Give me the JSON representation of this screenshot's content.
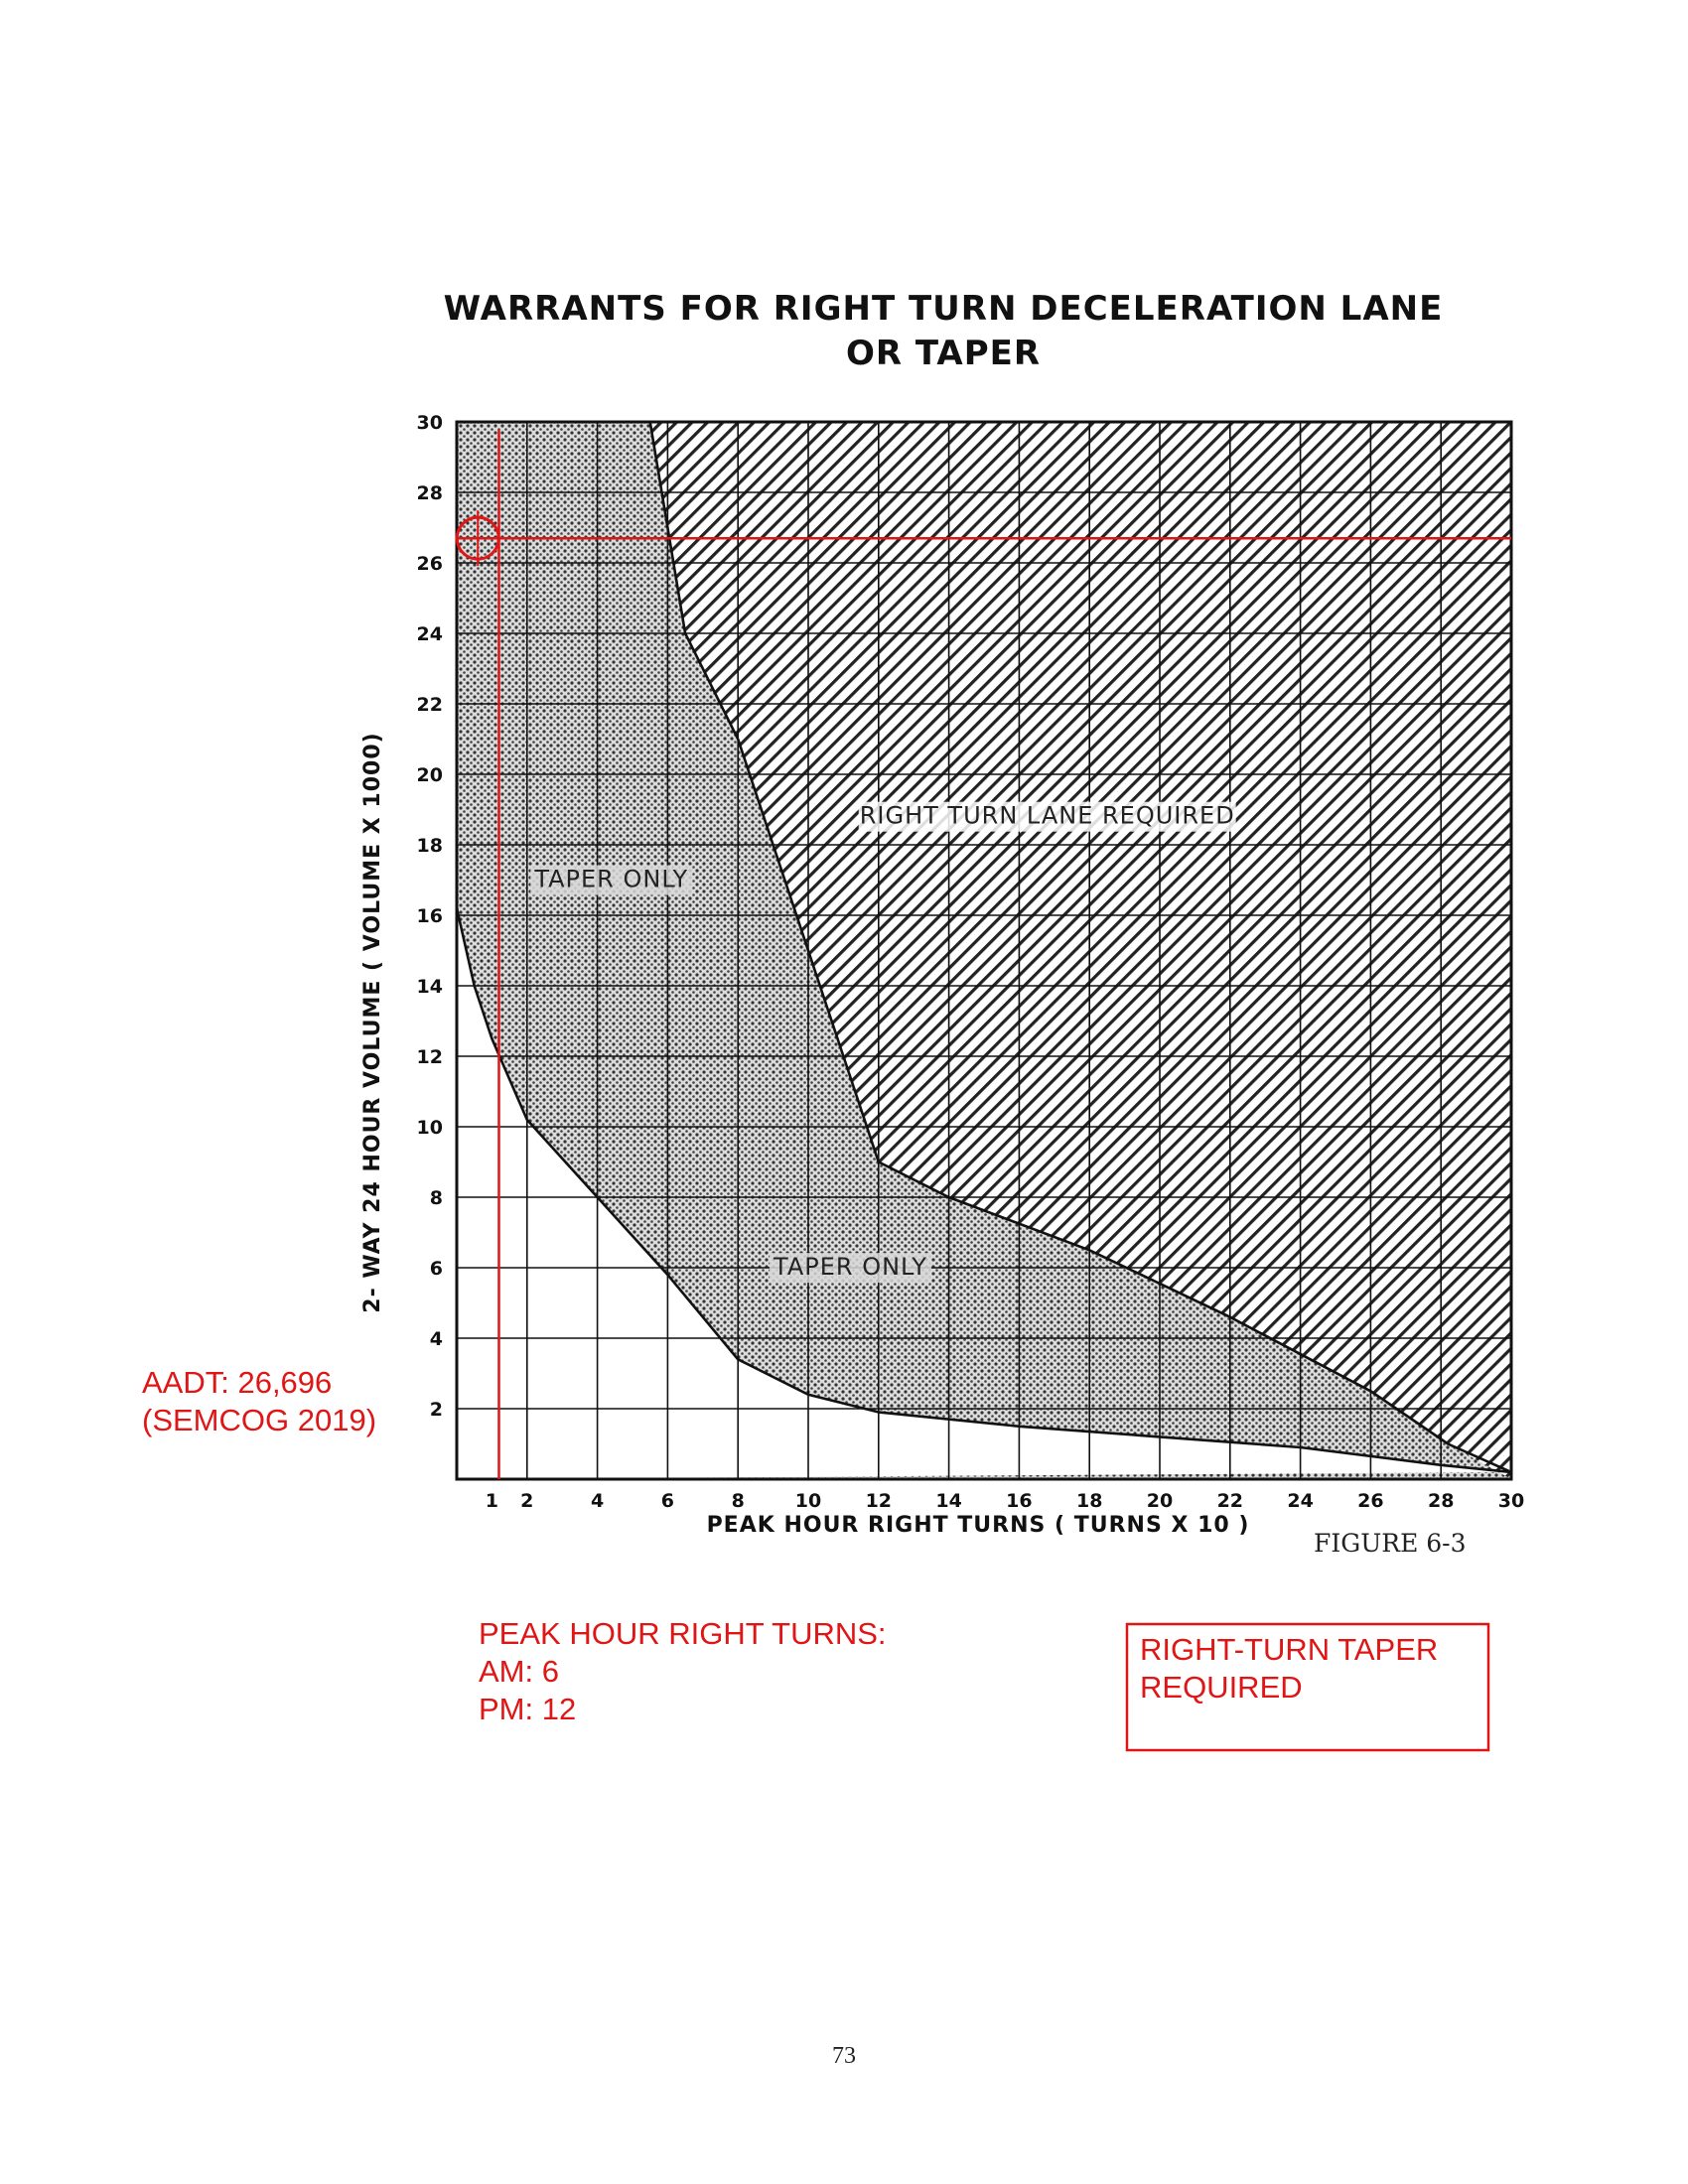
{
  "chart_data": {
    "type": "area",
    "title": "WARRANTS FOR RIGHT TURN DECELERATION LANE",
    "title_line2": "OR TAPER",
    "xlabel": "PEAK HOUR RIGHT TURNS ( TURNS X 10 )",
    "ylabel": "2- WAY 24 HOUR VOLUME ( VOLUME X 1000)",
    "xlim": [
      0,
      30
    ],
    "ylim": [
      0,
      30
    ],
    "grid": true,
    "x_ticks": [
      "1",
      "2",
      "4",
      "6",
      "8",
      "10",
      "12",
      "14",
      "16",
      "18",
      "20",
      "22",
      "24",
      "26",
      "28",
      "30"
    ],
    "y_ticks": [
      "2",
      "4",
      "6",
      "8",
      "10",
      "12",
      "14",
      "16",
      "18",
      "20",
      "22",
      "24",
      "26",
      "28",
      "30"
    ],
    "regions": [
      {
        "name": "TAPER ONLY",
        "boundary": {
          "x": [
            0,
            0.5,
            1,
            2,
            4,
            6,
            8,
            10,
            12,
            16,
            20,
            24,
            28,
            30
          ],
          "y": [
            16.2,
            14,
            12.5,
            10.2,
            8,
            5.8,
            3.4,
            2.4,
            1.9,
            1.5,
            1.2,
            0.9,
            0.4,
            0.2
          ]
        },
        "labels": [
          "TAPER ONLY",
          "TAPER ONLY"
        ]
      },
      {
        "name": "RIGHT TURN LANE REQUIRED",
        "boundary": {
          "x": [
            5.5,
            6.5,
            8,
            9.5,
            11,
            12,
            14,
            18,
            22,
            26,
            28.2,
            30
          ],
          "y": [
            30,
            24,
            21,
            16.5,
            12,
            9,
            8,
            6.5,
            4.6,
            2.5,
            1,
            0.2
          ]
        },
        "labels": [
          "RIGHT TURN LANE REQUIRED"
        ]
      }
    ],
    "reference_lines": {
      "aadt_volume": 26.696,
      "peak_hour_turns": 1.2,
      "marker": {
        "x": 0.6,
        "y": 26.7
      }
    },
    "figure_label": "FIGURE 6-3",
    "annotations": {
      "aadt_line1": "AADT: 26,696",
      "aadt_line2": "(SEMCOG 2019)",
      "turns_title": "PEAK HOUR RIGHT TURNS:",
      "turns_am": "AM: 6",
      "turns_pm": "PM: 12",
      "result_line1": "RIGHT-TURN TAPER",
      "result_line2": "REQUIRED"
    }
  },
  "page_number": "73",
  "colors": {
    "annotation": "#e01515",
    "ink": "#111111",
    "stipple": "#3a3a3a",
    "hatch": "#222222"
  }
}
